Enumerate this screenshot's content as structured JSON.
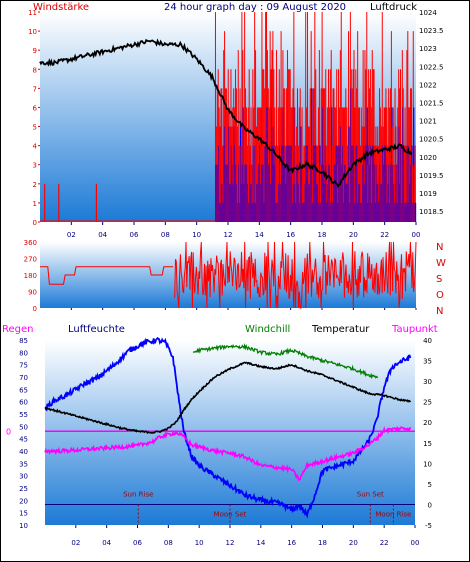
{
  "header": {
    "title": "24 hour graph day : 09 August 2020",
    "left_label": "Windstärke",
    "right_label": "Luftdruck"
  },
  "panel_bottom_labels": {
    "regen": "Regen",
    "luftfeuchte": "Luftfeuchte",
    "windchill": "Windchill",
    "temperatur": "Temperatur",
    "taupunkt": "Taupunkt"
  },
  "colors": {
    "gradient_top": "#ffffff",
    "gradient_bottom": "#1c7ad6",
    "wind": "#ff0000",
    "gust": "#0000ff",
    "pressure": "#000000",
    "temperature": "#000000",
    "windchill": "#008000",
    "humidity": "#0000ff",
    "dewpoint": "#ff00ff",
    "rain": "#ff00ff",
    "sun_moon": "#aa0000",
    "axis_red": "#dd0000",
    "axis_blue": "#000080"
  },
  "chart_data": [
    {
      "type": "bar",
      "name": "wind-and-pressure",
      "x_ticks": [
        "02",
        "04",
        "06",
        "08",
        "10",
        "12",
        "14",
        "16",
        "18",
        "20",
        "22",
        "00"
      ],
      "y_left_ticks": [
        "0",
        "1",
        "2",
        "3",
        "4",
        "5",
        "6",
        "7",
        "8",
        "9",
        "10",
        "11"
      ],
      "y_left_range": [
        0,
        11
      ],
      "y_right_ticks": [
        "1018.5",
        "1019",
        "1019.5",
        "1020",
        "1020.5",
        "1021",
        "1021.5",
        "1022",
        "1022.5",
        "1023",
        "1023.5",
        "1024"
      ],
      "y_right_range": [
        1018.2,
        1024
      ],
      "x_range_hours": [
        0,
        24
      ],
      "wind_spikes": [
        [
          0.3,
          2
        ],
        [
          1.2,
          2
        ],
        [
          3.6,
          2
        ]
      ],
      "wind_active_from_hour": 11.2,
      "pressure": {
        "x": [
          0,
          1,
          2,
          3,
          4,
          5,
          6,
          7,
          8,
          9,
          10,
          11,
          12,
          13,
          14,
          15,
          16,
          17,
          18,
          19,
          20,
          21,
          22,
          23,
          23.7
        ],
        "y": [
          1022.6,
          1022.6,
          1022.7,
          1022.8,
          1022.9,
          1023.0,
          1023.1,
          1023.2,
          1023.1,
          1023.1,
          1022.7,
          1022.2,
          1021.3,
          1020.8,
          1020.5,
          1020.1,
          1019.6,
          1019.8,
          1019.6,
          1019.2,
          1019.8,
          1020.1,
          1020.2,
          1020.3,
          1020.1
        ]
      }
    },
    {
      "type": "line",
      "name": "wind-direction",
      "y_ticks": [
        "0",
        "90",
        "180",
        "270",
        "360"
      ],
      "y_range": [
        0,
        360
      ],
      "compass": [
        "N",
        "W",
        "S",
        "O",
        "N"
      ],
      "x_ticks": [
        "02",
        "04",
        "06",
        "08",
        "10",
        "12",
        "14",
        "16",
        "18",
        "20",
        "22",
        "00"
      ],
      "base": {
        "x": [
          0,
          0.5,
          0.6,
          1.5,
          1.6,
          2.2,
          2.3,
          7.0,
          7.1,
          7.8,
          7.9,
          8.5
        ],
        "y": [
          225,
          225,
          130,
          130,
          180,
          180,
          225,
          225,
          180,
          180,
          225,
          225
        ]
      },
      "noisy_from_hour": 8.6
    },
    {
      "type": "line",
      "name": "humidity-temperature",
      "y_left_ticks": [
        "10",
        "15",
        "20",
        "25",
        "30",
        "35",
        "40",
        "45",
        "50",
        "55",
        "60",
        "65",
        "70",
        "75",
        "80",
        "85"
      ],
      "y_left_range": [
        10,
        85
      ],
      "y_right_ticks": [
        "-5",
        "0",
        "5",
        "10",
        "15",
        "20",
        "25",
        "30",
        "35",
        "40"
      ],
      "y_right_range": [
        -5,
        40
      ],
      "rain_zero_label": "0",
      "x_ticks": [
        "02",
        "04",
        "06",
        "08",
        "10",
        "12",
        "14",
        "16",
        "18",
        "20",
        "22",
        "00"
      ],
      "humidity": {
        "x": [
          0,
          0.5,
          1.5,
          2.5,
          3.5,
          4.5,
          5.5,
          6.5,
          7.3,
          7.8,
          8.3,
          8.7,
          9.0,
          9.5,
          10.0,
          10.5,
          11.0,
          12.0,
          13.0,
          14.0,
          15.0,
          15.5,
          16.0,
          16.5,
          17.0,
          17.5,
          18.0,
          19.0,
          20.0,
          20.5,
          21.0,
          21.5,
          22.0,
          22.5,
          23.0,
          23.7
        ],
        "y": [
          57,
          60,
          63,
          67,
          70,
          75,
          81,
          84,
          85,
          84,
          78,
          60,
          48,
          38,
          34,
          32,
          30,
          26,
          22,
          20,
          19,
          18,
          16,
          18,
          14,
          22,
          32,
          34,
          36,
          40,
          44,
          52,
          66,
          74,
          76,
          78
        ]
      },
      "temperature": {
        "x": [
          0,
          1,
          2,
          3,
          4,
          5,
          6,
          7,
          7.5,
          8,
          8.5,
          9,
          9.5,
          10,
          11,
          12,
          13,
          14,
          15,
          16,
          17,
          18,
          19,
          20,
          21,
          22,
          23,
          23.7
        ],
        "y": [
          23.5,
          22.5,
          21.5,
          20.5,
          19.5,
          18.5,
          17.8,
          17.5,
          17.8,
          18.5,
          20,
          23,
          25.5,
          27.5,
          31,
          33,
          34.5,
          33.5,
          33,
          34,
          32.5,
          31.5,
          30,
          28.5,
          27,
          26.5,
          25.5,
          25
        ]
      },
      "windchill": {
        "x": [
          9.6,
          10,
          11,
          12,
          13,
          14,
          15,
          16,
          17,
          18,
          19,
          20,
          21,
          21.6
        ],
        "y": [
          37,
          37.5,
          38,
          38.5,
          38.3,
          37,
          36.5,
          37.5,
          36,
          35,
          34,
          33,
          31.5,
          31
        ]
      },
      "dewpoint": {
        "x": [
          0,
          1,
          2,
          3,
          4,
          5,
          6,
          7,
          7.5,
          8,
          8.5,
          9,
          9.5,
          10,
          11,
          12,
          13,
          14,
          15,
          16,
          16.5,
          17,
          18,
          19,
          20,
          21,
          21.5,
          22,
          23,
          23.7
        ],
        "y": [
          13,
          13,
          13.2,
          13.5,
          13.7,
          14,
          14.3,
          15.3,
          16.5,
          17,
          17.5,
          16.5,
          14.5,
          14,
          13,
          12.5,
          11.5,
          9.5,
          9,
          8.5,
          6,
          9.5,
          10.5,
          11.5,
          12.5,
          14.5,
          16,
          18,
          18.5,
          18.5
        ]
      },
      "rain_line_value": 0,
      "annotations": {
        "sun_rise": "Sun Rise",
        "moon_set": "Moon Set",
        "sun_set": "Sun Set",
        "moon_rise": "Moon Rise",
        "sun_rise_hour": 6.05,
        "moon_set_hour": 12.0,
        "sun_set_hour": 21.1,
        "moon_rise_hour": 22.6
      }
    }
  ]
}
